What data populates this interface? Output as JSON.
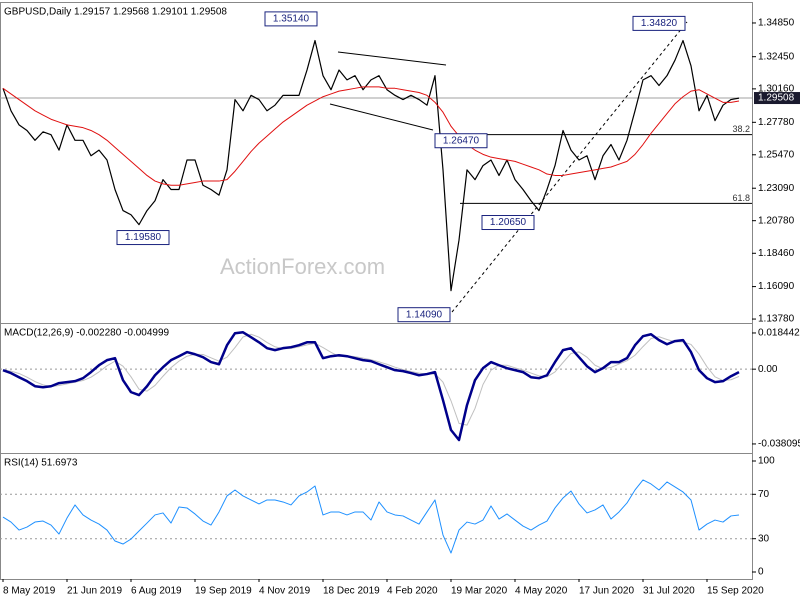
{
  "chart_data": [
    {
      "type": "line",
      "title": "GBPUSD,Daily  1.29157 1.29568 1.29101 1.29508",
      "watermark": "ActionForex.com",
      "ylim": [
        1.1357,
        1.362
      ],
      "yticks": [
        {
          "value": 1.3485,
          "label": "1.34850"
        },
        {
          "value": 1.3245,
          "label": "1.32450"
        },
        {
          "value": 1.3016,
          "label": "1.30160"
        },
        {
          "value": 1.2778,
          "label": "1.27780"
        },
        {
          "value": 1.2547,
          "label": "1.25470"
        },
        {
          "value": 1.2309,
          "label": "1.23090"
        },
        {
          "value": 1.2078,
          "label": "1.20780"
        },
        {
          "value": 1.1846,
          "label": "1.18460"
        },
        {
          "value": 1.1609,
          "label": "1.16090"
        },
        {
          "value": 1.1378,
          "label": "1.13780"
        }
      ],
      "last_price": 1.29508,
      "annotations": [
        {
          "value": 1.3514,
          "label": "1.35140"
        },
        {
          "value": 1.3482,
          "label": "1.34820"
        },
        {
          "value": 1.1958,
          "label": "1.19580"
        },
        {
          "value": 1.2647,
          "label": "1.26470"
        },
        {
          "value": 1.2065,
          "label": "1.20650"
        },
        {
          "value": 1.1409,
          "label": "1.14090"
        }
      ],
      "fib_levels": [
        38.2,
        61.8
      ],
      "series": [
        {
          "color": "#000000",
          "values": [
            1.302,
            1.286,
            1.276,
            1.272,
            1.265,
            1.271,
            1.269,
            1.258,
            1.276,
            1.265,
            1.265,
            1.254,
            1.258,
            1.251,
            1.23,
            1.215,
            1.212,
            1.205,
            1.215,
            1.222,
            1.237,
            1.23,
            1.23,
            1.251,
            1.251,
            1.233,
            1.23,
            1.226,
            1.244,
            1.294,
            1.286,
            1.297,
            1.294,
            1.286,
            1.29,
            1.297,
            1.297,
            1.297,
            1.315,
            1.336,
            1.311,
            1.301,
            1.315,
            1.308,
            1.311,
            1.301,
            1.308,
            1.311,
            1.301,
            1.297,
            1.294,
            1.297,
            1.294,
            1.29,
            1.311,
            1.244,
            1.158,
            1.194,
            1.244,
            1.237,
            1.247,
            1.251,
            1.24,
            1.251,
            1.237,
            1.23,
            1.222,
            1.215,
            1.23,
            1.247,
            1.272,
            1.258,
            1.251,
            1.254,
            1.237,
            1.254,
            1.262,
            1.251,
            1.265,
            1.286,
            1.308,
            1.311,
            1.304,
            1.311,
            1.322,
            1.336,
            1.318,
            1.286,
            1.297,
            1.279,
            1.29,
            1.294,
            1.295
          ]
        },
        {
          "color": "#e01010",
          "values": [
            1.302,
            1.298,
            1.294,
            1.29,
            1.286,
            1.283,
            1.28,
            1.278,
            1.276,
            1.275,
            1.274,
            1.272,
            1.269,
            1.265,
            1.26,
            1.255,
            1.25,
            1.245,
            1.24,
            1.236,
            1.234,
            1.233,
            1.233,
            1.234,
            1.235,
            1.236,
            1.236,
            1.236,
            1.237,
            1.243,
            1.25,
            1.257,
            1.263,
            1.268,
            1.273,
            1.278,
            1.282,
            1.286,
            1.29,
            1.293,
            1.296,
            1.298,
            1.3,
            1.301,
            1.302,
            1.303,
            1.303,
            1.303,
            1.302,
            1.302,
            1.301,
            1.3,
            1.299,
            1.297,
            1.292,
            1.285,
            1.275,
            1.268,
            1.262,
            1.258,
            1.255,
            1.253,
            1.252,
            1.251,
            1.25,
            1.248,
            1.246,
            1.244,
            1.241,
            1.24,
            1.24,
            1.241,
            1.242,
            1.243,
            1.244,
            1.245,
            1.246,
            1.248,
            1.25,
            1.255,
            1.262,
            1.27,
            1.277,
            1.284,
            1.291,
            1.296,
            1.3,
            1.301,
            1.298,
            1.295,
            1.292,
            1.292,
            1.293
          ]
        }
      ]
    },
    {
      "type": "line",
      "title": "MACD(12,26,9) -0.002280 -0.004999",
      "ylim": [
        -0.0422,
        0.0225
      ],
      "yticks": [
        0.018442,
        {
          "value": 0,
          "label": "0.00"
        },
        -0.038095
      ],
      "levels": [
        0
      ],
      "series": [
        {
          "color": "#c0c0c0",
          "values": [
            -0.0005,
            -0.001,
            -0.0022,
            -0.0041,
            -0.0063,
            -0.008,
            -0.0089,
            -0.0083,
            -0.0075,
            -0.0066,
            -0.0058,
            -0.0041,
            -0.0014,
            0.0017,
            0.0041,
            0.0015,
            -0.0039,
            -0.0102,
            -0.0112,
            -0.0083,
            -0.0036,
            0.0008,
            0.0041,
            0.0066,
            0.0076,
            0.0075,
            0.0058,
            0.0041,
            0.0061,
            0.011,
            0.0164,
            0.0178,
            0.0163,
            0.0136,
            0.0114,
            0.0104,
            0.0105,
            0.0114,
            0.0124,
            0.0132,
            0.011,
            0.0086,
            0.0064,
            0.0068,
            0.0064,
            0.0056,
            0.0048,
            0.0037,
            0.0025,
            0.001,
            -0.0002,
            -0.0012,
            -0.002,
            -0.0025,
            -0.0024,
            -0.0066,
            -0.0161,
            -0.0276,
            -0.0285,
            -0.02,
            -0.0078,
            -0.0005,
            0.002,
            0.002,
            0.0007,
            -0.0005,
            -0.002,
            -0.0034,
            -0.0039,
            -0.0014,
            0.0034,
            0.008,
            0.0088,
            0.0061,
            0.002,
            0.0002,
            0.0009,
            0.0026,
            0.0043,
            0.0071,
            0.0115,
            0.0156,
            0.0165,
            0.0151,
            0.0139,
            0.0139,
            0.0126,
            0.0077,
            0.0012,
            -0.0039,
            -0.0058,
            -0.0054,
            -0.0037
          ]
        },
        {
          "color": "#00008b",
          "values": [
            -0.0005,
            -0.002,
            -0.0041,
            -0.0061,
            -0.0087,
            -0.0092,
            -0.0087,
            -0.0071,
            -0.0066,
            -0.0061,
            -0.0046,
            -0.0015,
            0.002,
            0.0046,
            0.0056,
            -0.0056,
            -0.0117,
            -0.0132,
            -0.0087,
            -0.0031,
            0.001,
            0.0046,
            0.0066,
            0.0087,
            0.0076,
            0.0061,
            0.0036,
            0.0025,
            0.0122,
            0.0183,
            0.0188,
            0.0163,
            0.0137,
            0.0107,
            0.0097,
            0.0107,
            0.0112,
            0.0122,
            0.0137,
            0.0137,
            0.0056,
            0.0066,
            0.0071,
            0.0066,
            0.0056,
            0.0046,
            0.0041,
            0.0025,
            0.001,
            -0.0005,
            -0.001,
            -0.002,
            -0.0031,
            -0.0025,
            -0.0015,
            -0.0158,
            -0.031,
            -0.0361,
            -0.0183,
            -0.0056,
            0.0005,
            0.0036,
            0.002,
            0.0005,
            -0.0005,
            -0.0015,
            -0.0041,
            -0.0046,
            -0.0031,
            0.0036,
            0.0097,
            0.0107,
            0.0061,
            0.0015,
            -0.0015,
            0.0005,
            0.0036,
            0.0036,
            0.0056,
            0.0122,
            0.0168,
            0.0178,
            0.0148,
            0.0127,
            0.0143,
            0.0148,
            0.0087,
            -0.0005,
            -0.0046,
            -0.0066,
            -0.0061,
            -0.0036,
            -0.0015
          ]
        }
      ]
    },
    {
      "type": "line",
      "title": "RSI(14) 51.6973",
      "ylim": [
        -5.4,
        105.4
      ],
      "yticks": [
        100,
        70,
        30,
        0
      ],
      "levels": [
        70,
        30
      ],
      "categories": [
        "8 May 2019",
        null,
        null,
        null,
        null,
        null,
        null,
        null,
        "21 Jun 2019",
        null,
        null,
        null,
        null,
        null,
        null,
        null,
        "6 Aug 2019",
        null,
        null,
        null,
        null,
        null,
        null,
        null,
        "19 Sep 2019",
        null,
        null,
        null,
        null,
        null,
        null,
        null,
        "4 Nov 2019",
        null,
        null,
        null,
        null,
        null,
        null,
        null,
        "18 Dec 2019",
        null,
        null,
        null,
        null,
        null,
        null,
        null,
        "4 Feb 2020",
        null,
        null,
        null,
        null,
        null,
        null,
        null,
        "19 Mar 2020",
        null,
        null,
        null,
        null,
        null,
        null,
        null,
        "4 May 2020",
        null,
        null,
        null,
        null,
        null,
        null,
        null,
        "17 Jun 2020",
        null,
        null,
        null,
        null,
        null,
        null,
        null,
        "31 Jul 2020",
        null,
        null,
        null,
        null,
        null,
        null,
        null,
        "15 Sep 2020",
        null,
        null,
        null,
        null
      ],
      "series": [
        {
          "color": "#1e90ff",
          "values": [
            49.5,
            45.0,
            37.8,
            40.5,
            45.0,
            45.9,
            42.3,
            34.2,
            48.6,
            60.4,
            51.4,
            46.8,
            43.2,
            37.8,
            27.9,
            25.2,
            29.7,
            36.9,
            44.1,
            51.4,
            53.2,
            44.1,
            58.6,
            57.7,
            52.3,
            45.9,
            42.3,
            54.1,
            68.5,
            73.9,
            68.5,
            64.9,
            61.3,
            64.9,
            64.9,
            63.1,
            60.4,
            68.5,
            72.1,
            77.5,
            51.4,
            54.1,
            54.1,
            51.4,
            54.1,
            54.1,
            46.8,
            63.1,
            54.1,
            51.4,
            50.5,
            46.8,
            43.2,
            54.1,
            64.9,
            33.3,
            17.1,
            37.8,
            45.0,
            43.2,
            46.8,
            59.5,
            47.7,
            52.3,
            46.8,
            41.4,
            37.8,
            42.3,
            45.9,
            57.7,
            66.7,
            73.0,
            61.3,
            53.2,
            55.9,
            60.4,
            47.7,
            54.1,
            62.2,
            73.9,
            82.9,
            79.3,
            73.9,
            81.1,
            76.6,
            72.1,
            64.9,
            37.8,
            43.2,
            46.8,
            45.0,
            50.5,
            51.4
          ]
        }
      ]
    }
  ]
}
